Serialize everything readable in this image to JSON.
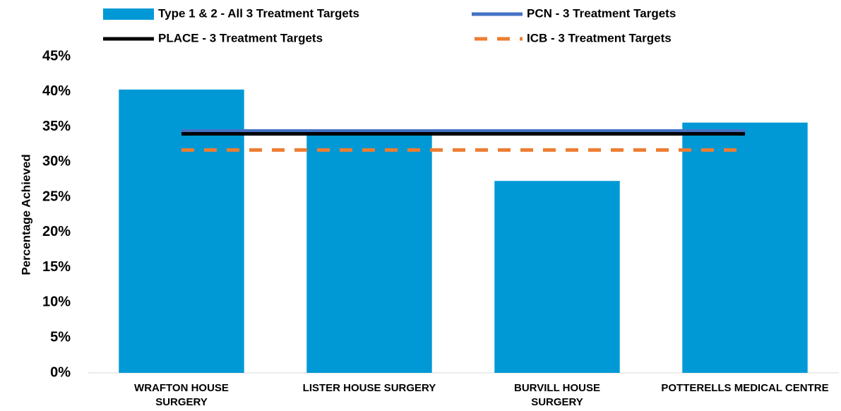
{
  "chart_data": {
    "type": "bar",
    "categories": [
      "WRAFTON HOUSE SURGERY",
      "LISTER HOUSE SURGERY",
      "BURVILL HOUSE SURGERY",
      "POTTERELLS MEDICAL CENTRE"
    ],
    "y_axis_label": "Percentage Achieved",
    "series": [
      {
        "name": "Type 1 & 2 - All 3 Treatment Targets",
        "type": "bar",
        "color": "#0099d6",
        "values": [
          40.3,
          34.5,
          27.3,
          35.6
        ]
      },
      {
        "name": "PCN - 3 Treatment Targets",
        "type": "line",
        "color": "#4472c4",
        "values": [
          34.4,
          34.4,
          34.4,
          34.4
        ]
      },
      {
        "name": "PLACE - 3 Treatment Targets",
        "type": "line",
        "color": "#000000",
        "values": [
          34.0,
          34.0,
          34.0,
          34.0
        ]
      },
      {
        "name": "ICB - 3 Treatment Targets",
        "type": "line",
        "color": "#ed7d31",
        "dashed": true,
        "values": [
          31.7,
          31.7,
          31.7,
          31.7
        ]
      }
    ],
    "ylim": [
      0,
      45
    ],
    "yticks": [
      {
        "value": 0,
        "label": "0%"
      },
      {
        "value": 5,
        "label": "5%"
      },
      {
        "value": 10,
        "label": "10%"
      },
      {
        "value": 15,
        "label": "15%"
      },
      {
        "value": 20,
        "label": "20%"
      },
      {
        "value": 25,
        "label": "25%"
      },
      {
        "value": 30,
        "label": "30%"
      },
      {
        "value": 35,
        "label": "35%"
      },
      {
        "value": 40,
        "label": "40%"
      },
      {
        "value": 45,
        "label": "45%"
      }
    ],
    "grid": false,
    "legend": "top"
  }
}
